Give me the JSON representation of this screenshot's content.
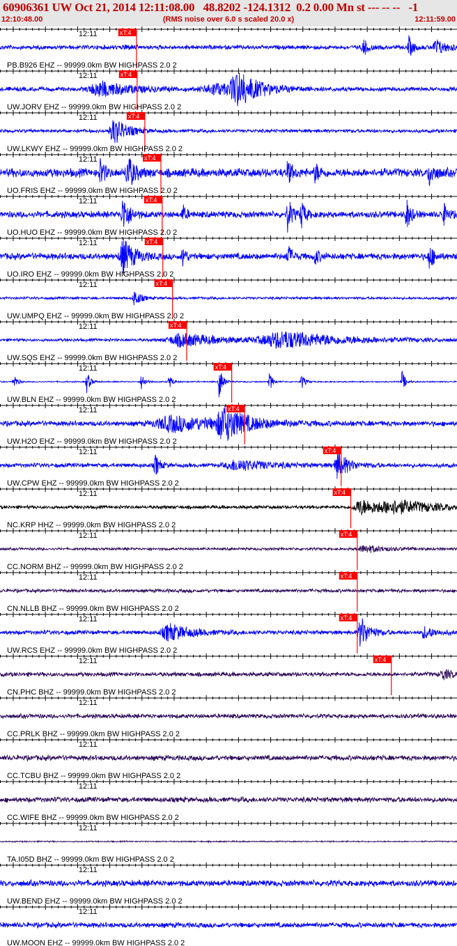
{
  "header": {
    "title": "60906361 UW Oct 21, 2014 12:11:08.00   48.8202 -124.1312  0.2 0.00 Mn st --- -- --   -1",
    "start_time": "12:10:48.00",
    "subtitle": "(RMS noise over 6.0 s scaled 20.0 x)",
    "end_time": "12:11:59.00"
  },
  "colors": {
    "header_bg": "#e6e6e6",
    "header_text": "#c00000",
    "pick": "#ff0000",
    "trace_blue": "#0000ff",
    "trace_black": "#000000",
    "trace_purple": "#2a0a5a"
  },
  "chart_data": {
    "type": "line",
    "x_unit": "time",
    "minute_label": "12:11",
    "pick_label": "xT:4",
    "traces": [
      {
        "label": "PB.B926 EHZ -- 99999.0km BW  HIGHPASS  2.0  2",
        "color": "blue",
        "pick_time": "12:11:09.2",
        "noise": 0.1,
        "bursts": [
          [
            0.795,
            0.5,
            0.004
          ],
          [
            0.895,
            0.55,
            0.004
          ],
          [
            0.955,
            0.4,
            0.01
          ],
          [
            0.275,
            0.15,
            0.004
          ]
        ]
      },
      {
        "label": "UW.JORV EHZ -- 99999.0km BW  HIGHPASS  2.0  2",
        "color": "blue",
        "pick_time": "12:11:09.3",
        "noise": 0.1,
        "bursts": [
          [
            0.52,
            0.95,
            0.018
          ],
          [
            0.22,
            0.4,
            0.03
          ],
          [
            0.47,
            0.3,
            0.03
          ]
        ]
      },
      {
        "label": "UW.LKWY EHZ -- 99999.0km BW  HIGHPASS  2.0  2",
        "color": "blue",
        "pick_time": "12:11:10.5",
        "noise": 0.08,
        "bursts": [
          [
            0.25,
            0.75,
            0.012
          ]
        ]
      },
      {
        "label": "UO.FRIS EHZ -- 99999.0km BW  HIGHPASS  2.0  2",
        "color": "blue",
        "pick_time": "12:11:13.0",
        "noise": 0.2,
        "bursts": [
          [
            0.28,
            0.95,
            0.006
          ],
          [
            0.63,
            0.6,
            0.004
          ],
          [
            0.69,
            0.5,
            0.004
          ],
          [
            0.94,
            0.6,
            0.005
          ],
          [
            0.22,
            0.7,
            0.004
          ]
        ]
      },
      {
        "label": "UO.HUO EHZ -- 99999.0km BW  HIGHPASS  2.0  2",
        "color": "blue",
        "pick_time": "12:11:13.2",
        "noise": 0.15,
        "bursts": [
          [
            0.27,
            0.95,
            0.006
          ],
          [
            0.63,
            0.9,
            0.004
          ],
          [
            0.66,
            0.7,
            0.004
          ],
          [
            0.89,
            0.8,
            0.004
          ],
          [
            0.4,
            0.5,
            0.003
          ],
          [
            0.97,
            0.6,
            0.004
          ]
        ]
      },
      {
        "label": "UO.IRO EHZ -- 99999.0km BW  HIGHPASS  2.0  2",
        "color": "blue",
        "pick_time": "12:11:13.3",
        "noise": 0.15,
        "bursts": [
          [
            0.27,
            0.95,
            0.01
          ],
          [
            0.63,
            0.6,
            0.004
          ],
          [
            0.94,
            0.7,
            0.004
          ],
          [
            0.4,
            0.6,
            0.003
          ],
          [
            0.69,
            0.4,
            0.004
          ]
        ]
      },
      {
        "label": "UW.UMPQ EHZ -- 99999.0km BW  HIGHPASS  2.0  2",
        "color": "blue",
        "pick_time": "12:11:14.8",
        "noise": 0.06,
        "bursts": [
          [
            0.295,
            0.5,
            0.005
          ]
        ]
      },
      {
        "label": "UW.SQS EHZ -- 99999.0km BW  HIGHPASS  2.0  2",
        "color": "blue",
        "pick_time": "12:11:17.0",
        "noise": 0.07,
        "bursts": [
          [
            0.4,
            0.35,
            0.04
          ],
          [
            0.62,
            0.45,
            0.06
          ]
        ]
      },
      {
        "label": "UW.BLN EHZ -- 99999.0km BW  HIGHPASS  2.0  2",
        "color": "blue",
        "pick_time": "12:11:24.0",
        "noise": 0.03,
        "bursts": [
          [
            0.19,
            0.65,
            0.003
          ],
          [
            0.31,
            0.5,
            0.003
          ],
          [
            0.48,
            0.95,
            0.003
          ],
          [
            0.59,
            0.5,
            0.003
          ],
          [
            0.66,
            0.45,
            0.003
          ],
          [
            0.88,
            0.6,
            0.003
          ],
          [
            0.03,
            0.5,
            0.003
          ],
          [
            0.37,
            0.4,
            0.003
          ]
        ]
      },
      {
        "label": "UW.H2O EHZ -- 99999.0km BW  HIGHPASS  2.0  2",
        "color": "blue",
        "pick_time": "12:11:26.0",
        "noise": 0.12,
        "bursts": [
          [
            0.49,
            0.85,
            0.02
          ],
          [
            0.38,
            0.4,
            0.05
          ]
        ]
      },
      {
        "label": "UW.CPW EHZ -- 99999.0km BW  HIGHPASS  2.0  2",
        "color": "blue",
        "pick_time": "12:11:41.0",
        "noise": 0.1,
        "bursts": [
          [
            0.34,
            0.6,
            0.004
          ],
          [
            0.52,
            0.3,
            0.03
          ],
          [
            0.74,
            0.7,
            0.01
          ]
        ]
      },
      {
        "label": "NC.KRP HHZ -- 99999.0km BW  HIGHPASS  2.0  2",
        "color": "black",
        "pick_time": "12:11:42.5",
        "noise": 0.08,
        "bursts": [
          [
            0.79,
            0.4,
            0.02
          ],
          [
            0.87,
            0.3,
            0.05
          ]
        ]
      },
      {
        "label": "CC.NORM BHZ -- 99999.0km BW  HIGHPASS  2.0  2",
        "color": "purple",
        "pick_time": "12:11:43.5",
        "noise": 0.06,
        "bursts": [
          [
            0.8,
            0.2,
            0.02
          ]
        ]
      },
      {
        "label": "CN.NLLB BHZ -- 99999.0km BW  HIGHPASS  2.0  2",
        "color": "purple",
        "pick_time": "12:11:43.5",
        "noise": 0.08,
        "bursts": []
      },
      {
        "label": "UW.RCS EHZ -- 99999.0km BW  HIGHPASS  2.0  2",
        "color": "blue",
        "pick_time": "12:11:43.5",
        "noise": 0.1,
        "bursts": [
          [
            0.79,
            0.85,
            0.008
          ],
          [
            0.37,
            0.45,
            0.02
          ],
          [
            0.93,
            0.3,
            0.01
          ]
        ]
      },
      {
        "label": "CN.PHC BHZ -- 99999.0km BW  HIGHPASS  2.0  2",
        "color": "purple",
        "pick_time": "12:11:48.8",
        "noise": 0.1,
        "bursts": [
          [
            0.97,
            0.25,
            0.01
          ]
        ]
      },
      {
        "label": "CC.PRLK BHZ -- 99999.0km BW  HIGHPASS  2.0  2",
        "color": "purple",
        "pick_time": null,
        "noise": 0.1,
        "bursts": []
      },
      {
        "label": "CC.TCBU BHZ -- 99999.0km BW  HIGHPASS  2.0  2",
        "color": "purple",
        "pick_time": null,
        "noise": 0.12,
        "bursts": []
      },
      {
        "label": "CC.WIFE BHZ -- 99999.0km BW  HIGHPASS  2.0  2",
        "color": "purple",
        "pick_time": null,
        "noise": 0.12,
        "bursts": []
      },
      {
        "label": "TA.I05D BHZ -- 99999.0km BW  HIGHPASS  2.0  2",
        "color": "purple",
        "pick_time": null,
        "noise": 0.03,
        "bursts": []
      },
      {
        "label": "UW.BEND EHZ -- 99999.0km BW  HIGHPASS  2.0  2",
        "color": "blue",
        "pick_time": null,
        "noise": 0.14,
        "bursts": []
      },
      {
        "label": "UW.MOON EHZ -- 99999.0km BW  HIGHPASS  2.0  2",
        "color": "blue",
        "pick_time": null,
        "noise": 0.12,
        "bursts": []
      }
    ]
  }
}
